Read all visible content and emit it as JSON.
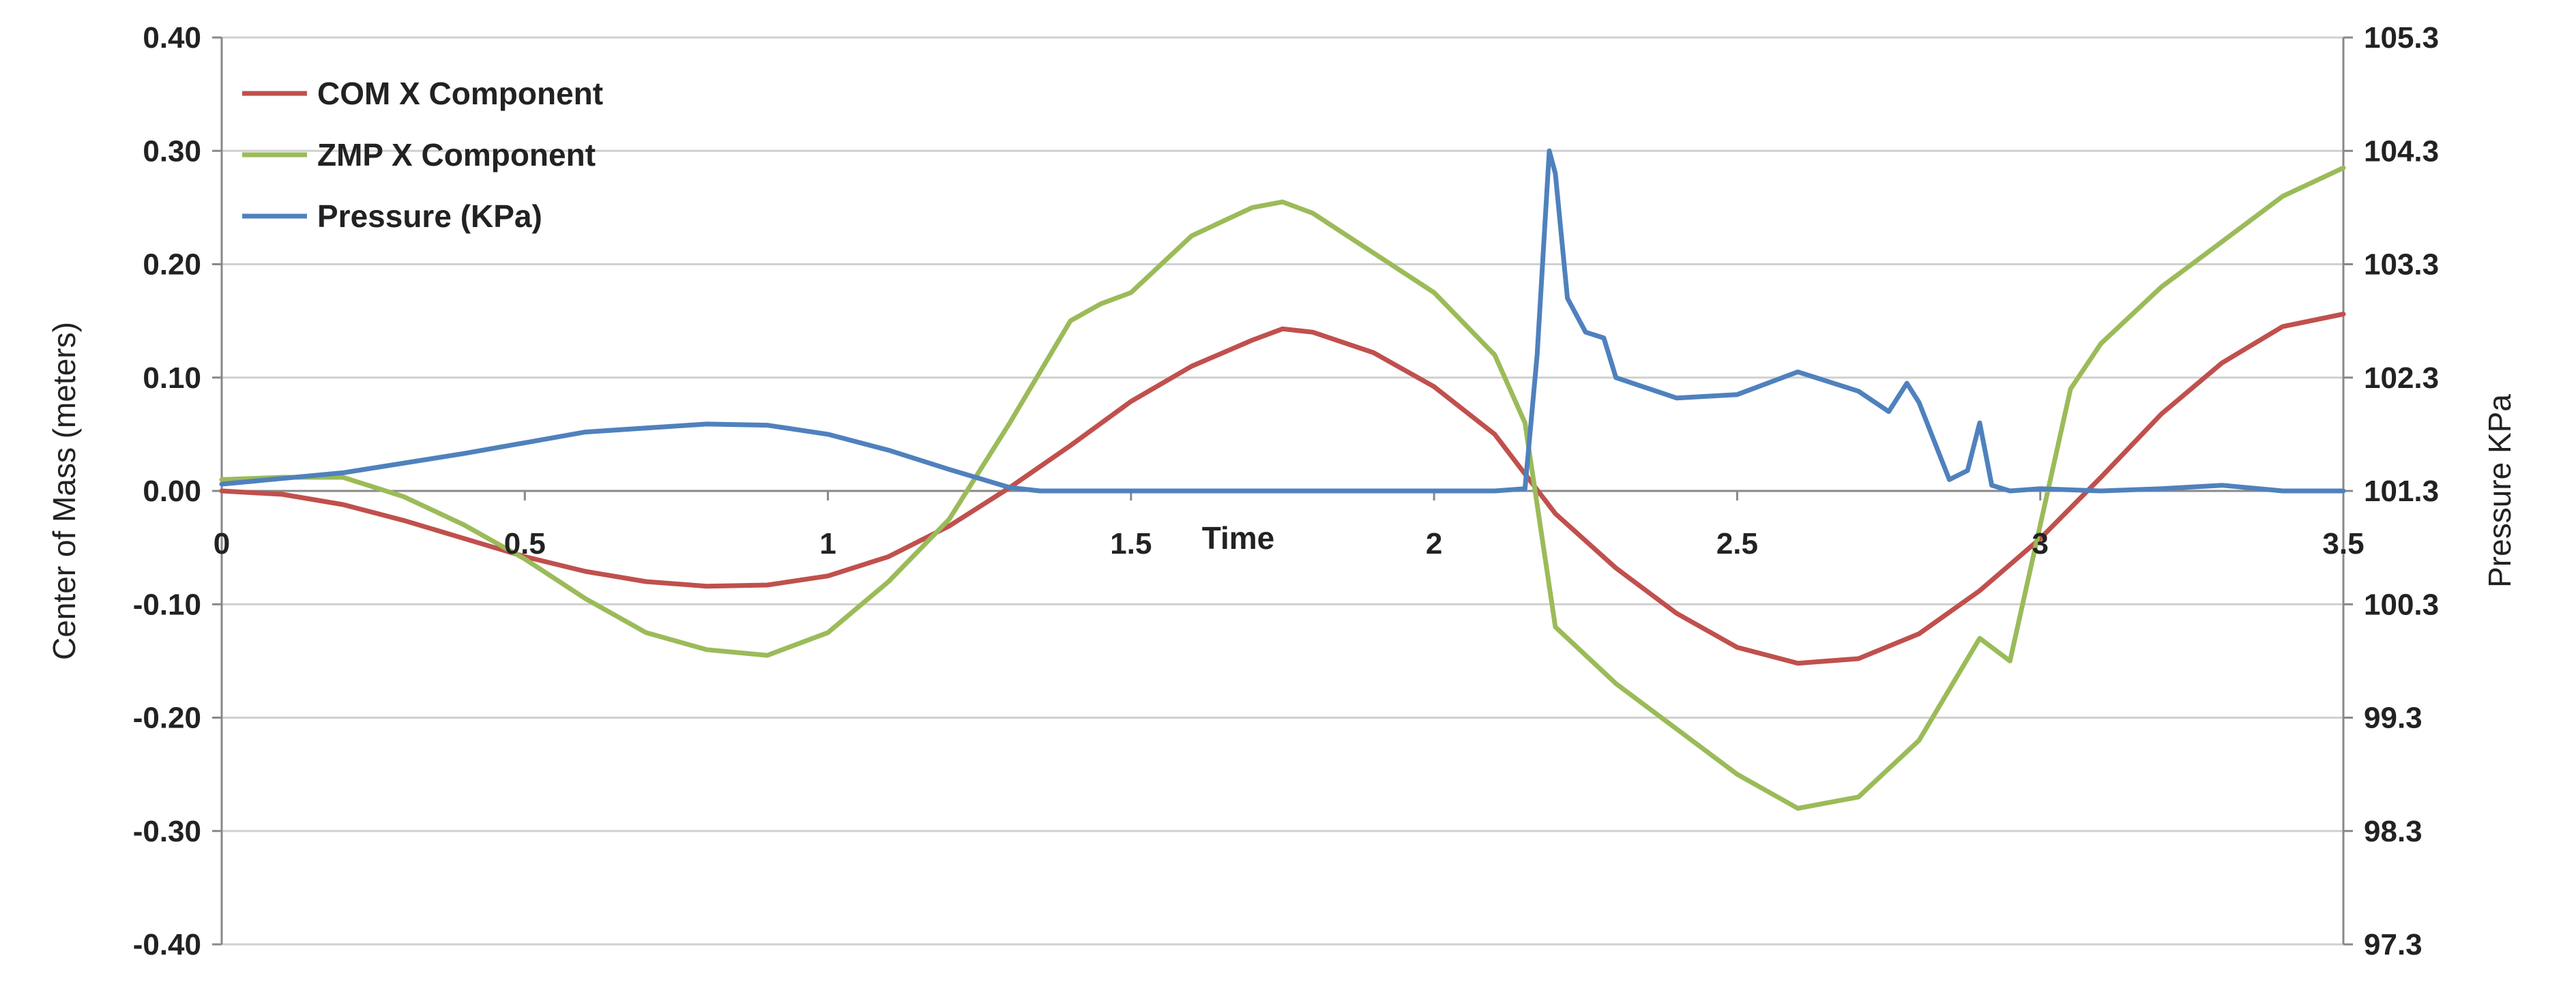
{
  "chart_data": {
    "type": "line",
    "title": "",
    "xlabel": "Time",
    "ylabel": "Center of Mass (meters)",
    "y2label": "Pressure KPa",
    "xlim": [
      0,
      3.5
    ],
    "ylim": [
      -0.4,
      0.4
    ],
    "y2lim": [
      97.3,
      105.3
    ],
    "x_ticks": [
      "0",
      "0.5",
      "1",
      "1.5",
      "2",
      "2.5",
      "3",
      "3.5"
    ],
    "x_tick_values": [
      0,
      0.5,
      1,
      1.5,
      2,
      2.5,
      3,
      3.5
    ],
    "y_ticks": [
      "0.40",
      "0.30",
      "0.20",
      "0.10",
      "0.00",
      "-0.10",
      "-0.20",
      "-0.30",
      "-0.40"
    ],
    "y_tick_values": [
      0.4,
      0.3,
      0.2,
      0.1,
      0.0,
      -0.1,
      -0.2,
      -0.3,
      -0.4
    ],
    "y2_ticks": [
      "105.3",
      "104.3",
      "103.3",
      "102.3",
      "101.3",
      "100.3",
      "99.3",
      "98.3",
      "97.3"
    ],
    "y2_tick_values": [
      105.3,
      104.3,
      103.3,
      102.3,
      101.3,
      100.3,
      99.3,
      98.3,
      97.3
    ],
    "grid": "horizontal",
    "legend_position": "top-left",
    "series": [
      {
        "name": "COM X Component",
        "color": "#c0504d",
        "axis": "left",
        "x": [
          0,
          0.1,
          0.2,
          0.3,
          0.4,
          0.5,
          0.6,
          0.7,
          0.8,
          0.9,
          1.0,
          1.1,
          1.2,
          1.3,
          1.4,
          1.5,
          1.6,
          1.7,
          1.75,
          1.8,
          1.9,
          2.0,
          2.1,
          2.15,
          2.2,
          2.3,
          2.4,
          2.5,
          2.6,
          2.7,
          2.8,
          2.9,
          3.0,
          3.1,
          3.2,
          3.3,
          3.4,
          3.5
        ],
        "y": [
          0.0,
          -0.003,
          -0.012,
          -0.026,
          -0.042,
          -0.058,
          -0.071,
          -0.08,
          -0.084,
          -0.083,
          -0.075,
          -0.058,
          -0.031,
          0.003,
          0.04,
          0.079,
          0.11,
          0.133,
          0.143,
          0.14,
          0.122,
          0.092,
          0.05,
          0.015,
          -0.02,
          -0.068,
          -0.108,
          -0.138,
          -0.152,
          -0.148,
          -0.126,
          -0.088,
          -0.042,
          0.012,
          0.068,
          0.113,
          0.145,
          0.156
        ]
      },
      {
        "name": "ZMP X Component",
        "color": "#9bbb59",
        "axis": "left",
        "x": [
          0,
          0.1,
          0.2,
          0.3,
          0.4,
          0.5,
          0.6,
          0.7,
          0.8,
          0.9,
          1.0,
          1.1,
          1.2,
          1.3,
          1.4,
          1.45,
          1.5,
          1.6,
          1.7,
          1.75,
          1.8,
          1.9,
          2.0,
          2.1,
          2.15,
          2.2,
          2.3,
          2.4,
          2.5,
          2.6,
          2.7,
          2.8,
          2.9,
          2.95,
          3.0,
          3.05,
          3.1,
          3.2,
          3.3,
          3.4,
          3.5
        ],
        "y": [
          0.01,
          0.012,
          0.012,
          -0.005,
          -0.03,
          -0.06,
          -0.095,
          -0.125,
          -0.14,
          -0.145,
          -0.125,
          -0.08,
          -0.025,
          0.06,
          0.15,
          0.165,
          0.175,
          0.225,
          0.25,
          0.255,
          0.245,
          0.21,
          0.175,
          0.12,
          0.06,
          -0.12,
          -0.17,
          -0.21,
          -0.25,
          -0.28,
          -0.27,
          -0.22,
          -0.13,
          -0.15,
          -0.03,
          0.09,
          0.13,
          0.18,
          0.22,
          0.26,
          0.285
        ]
      },
      {
        "name": "Pressure (KPa)",
        "color": "#4f81bd",
        "axis": "right",
        "x": [
          0,
          0.2,
          0.4,
          0.6,
          0.8,
          0.9,
          1.0,
          1.1,
          1.2,
          1.3,
          1.35,
          1.5,
          1.7,
          1.9,
          2.1,
          2.15,
          2.17,
          2.19,
          2.2,
          2.22,
          2.25,
          2.28,
          2.3,
          2.4,
          2.5,
          2.6,
          2.7,
          2.75,
          2.78,
          2.8,
          2.85,
          2.88,
          2.9,
          2.92,
          2.95,
          3.0,
          3.1,
          3.2,
          3.3,
          3.4,
          3.5
        ],
        "y": [
          101.36,
          101.46,
          101.63,
          101.82,
          101.89,
          101.88,
          101.8,
          101.66,
          101.49,
          101.33,
          101.3,
          101.3,
          101.3,
          101.3,
          101.3,
          101.32,
          102.5,
          104.3,
          104.1,
          103.0,
          102.7,
          102.65,
          102.3,
          102.12,
          102.15,
          102.35,
          102.18,
          102.0,
          102.25,
          102.08,
          101.4,
          101.48,
          101.9,
          101.35,
          101.3,
          101.32,
          101.3,
          101.32,
          101.35,
          101.3,
          101.3
        ]
      }
    ]
  }
}
